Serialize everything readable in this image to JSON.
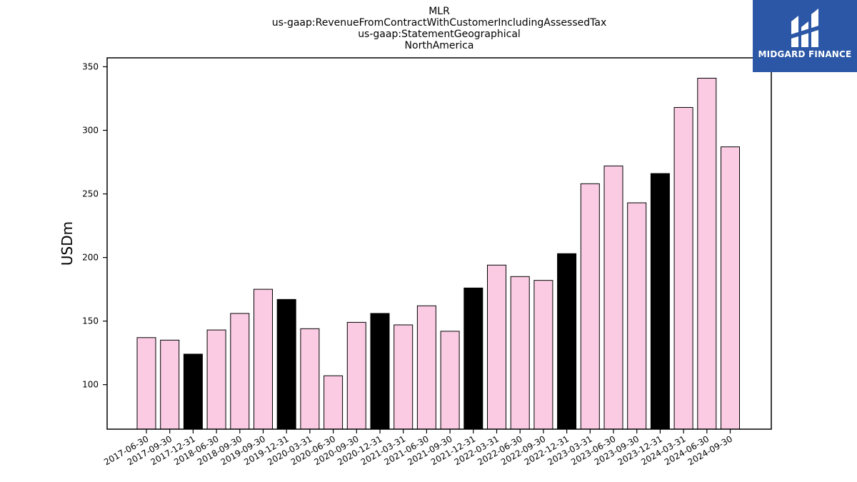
{
  "chart_data": {
    "type": "bar",
    "title_lines": [
      "MLR",
      "us-gaap:RevenueFromContractWithCustomerIncludingAssessedTax",
      "us-gaap:StatementGeographical",
      "NorthAmerica"
    ],
    "ylabel": "USDm",
    "xlabel": "",
    "ylim": [
      65,
      357
    ],
    "yticks": [
      100,
      150,
      200,
      250,
      300,
      350
    ],
    "categories": [
      "2017-06-30",
      "2017-09-30",
      "2017-12-31",
      "2018-06-30",
      "2018-09-30",
      "2019-09-30",
      "2019-12-31",
      "2020-03-31",
      "2020-06-30",
      "2020-09-30",
      "2020-12-31",
      "2021-03-31",
      "2021-06-30",
      "2021-09-30",
      "2021-12-31",
      "2022-03-31",
      "2022-06-30",
      "2022-09-30",
      "2022-12-31",
      "2023-03-31",
      "2023-06-30",
      "2023-09-30",
      "2023-12-31",
      "2024-03-31",
      "2024-06-30",
      "2024-09-30"
    ],
    "values": [
      137,
      135,
      124,
      143,
      156,
      175,
      167,
      144,
      107,
      149,
      156,
      147,
      162,
      142,
      176,
      194,
      185,
      182,
      203,
      258,
      272,
      243,
      266,
      318,
      341,
      287
    ],
    "bar_colors": {
      "quarter": "#fbcbe3",
      "year_end": "#000000",
      "edge": "#000000"
    },
    "grid": false
  },
  "logo": {
    "text": "MIDGARD FINANCE",
    "bg_color": "#2b57a6"
  }
}
